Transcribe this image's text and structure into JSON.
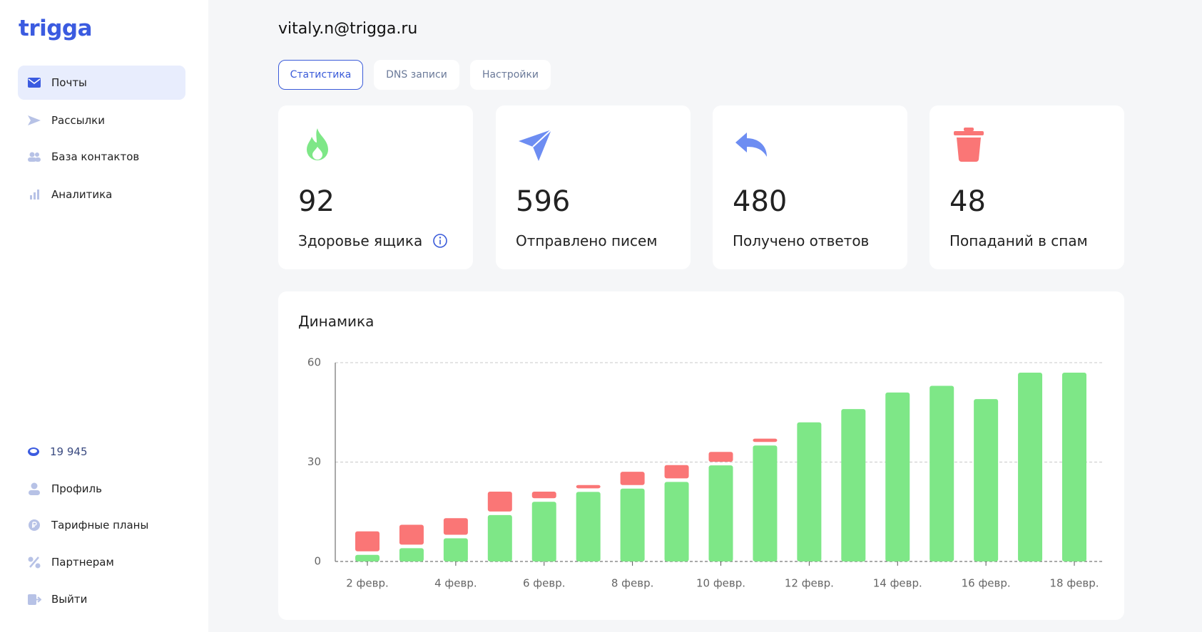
{
  "logo": "trigga",
  "sidebar": {
    "nav": [
      "Почты",
      "Рассылки",
      "База контактов",
      "Аналитика"
    ],
    "balance": "19 945",
    "menu": [
      "Профиль",
      "Тарифные планы",
      "Партнерам",
      "Выйти"
    ]
  },
  "header": {
    "email": "vitaly.n@trigga.ru"
  },
  "tabs": [
    "Статистика",
    "DNS записи",
    "Настройки"
  ],
  "stats": [
    {
      "value": 92,
      "label": "Здоровье ящика"
    },
    {
      "value": 596,
      "label": "Отправлено писем"
    },
    {
      "value": 480,
      "label": "Получено ответов"
    },
    {
      "value": 48,
      "label": "Попаданий в спам"
    }
  ],
  "chart_data": {
    "type": "bar",
    "stacked": true,
    "title": "Динамика",
    "categories": [
      "2 февр.",
      null,
      "4 февр.",
      null,
      "6 февр.",
      null,
      "8 февр.",
      null,
      "10 февр.",
      null,
      "12 февр.",
      null,
      "14 февр.",
      null,
      "16 февр.",
      null,
      "18 февр."
    ],
    "series": [
      {
        "color": "#7ee787",
        "values": [
          2,
          4,
          7,
          14,
          18,
          21,
          22,
          24,
          29,
          35,
          42,
          46,
          51,
          53,
          49,
          57,
          57
        ]
      },
      {
        "color": "#fa7676",
        "values": [
          6,
          6,
          5,
          6,
          2,
          1,
          4,
          4,
          3,
          1,
          0,
          0,
          0,
          0,
          0,
          0,
          0
        ]
      }
    ],
    "ylim": [
      0,
      60
    ],
    "yticks": [
      0,
      30,
      60
    ],
    "grid": true
  }
}
